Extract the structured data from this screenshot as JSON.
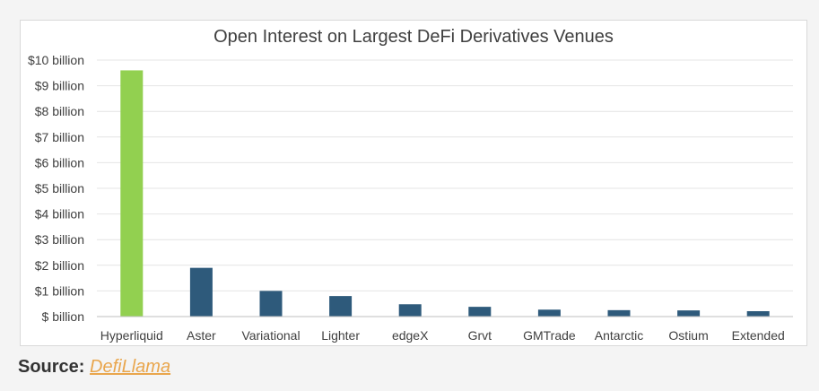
{
  "chart_data": {
    "type": "bar",
    "title": "Open Interest on Largest DeFi Derivatives Venues",
    "xlabel": "",
    "ylabel": "",
    "categories": [
      "Hyperliquid",
      "Aster",
      "Variational",
      "Lighter",
      "edgeX",
      "Grvt",
      "GMTrade",
      "Antarctic",
      "Ostium",
      "Extended"
    ],
    "values": [
      9.6,
      1.9,
      1.0,
      0.8,
      0.48,
      0.38,
      0.27,
      0.25,
      0.24,
      0.21
    ],
    "ylim": [
      0,
      10
    ],
    "yticks": [
      0,
      1,
      2,
      3,
      4,
      5,
      6,
      7,
      8,
      9,
      10
    ],
    "ytick_labels": [
      "$ billion",
      "$1 billion",
      "$2 billion",
      "$3 billion",
      "$4 billion",
      "$5 billion",
      "$6 billion",
      "$7 billion",
      "$8 billion",
      "$9 billion",
      "$10 billion"
    ],
    "bar_colors": [
      "#92d050",
      "#2e5a7b",
      "#2e5a7b",
      "#2e5a7b",
      "#2e5a7b",
      "#2e5a7b",
      "#2e5a7b",
      "#2e5a7b",
      "#2e5a7b",
      "#2e5a7b"
    ],
    "grid": true,
    "legend": "none"
  },
  "source": {
    "label": "Source:",
    "link_text": "DefiLlama"
  },
  "colors": {
    "highlight": "#92d050",
    "bar": "#2e5a7b",
    "link": "#e9a64d",
    "grid": "#e4e4e4"
  }
}
